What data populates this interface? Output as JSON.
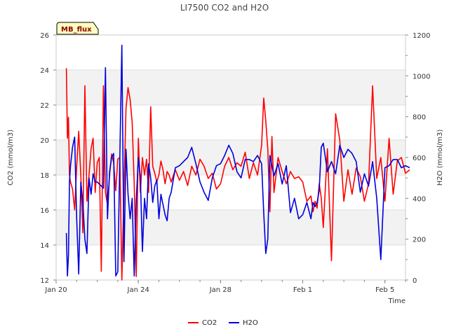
{
  "chart_data": {
    "type": "line",
    "title": "LI7500 CO2 and H2O",
    "xlabel": "Time",
    "ylabel_left": "CO2 (mmol/m3)",
    "ylabel_right": "H2O (mmol/m3)",
    "ylim_left": [
      12,
      26
    ],
    "ylim_right": [
      0,
      1200
    ],
    "xlim": [
      20.0,
      37.0
    ],
    "x_unit": "day of January",
    "y_ticks_left": [
      12,
      14,
      16,
      18,
      20,
      22,
      24,
      26
    ],
    "y_ticks_right": [
      0,
      200,
      400,
      600,
      800,
      1000,
      1200
    ],
    "x_ticks": [
      {
        "value": 20,
        "label": "Jan 20"
      },
      {
        "value": 24,
        "label": "Jan 24"
      },
      {
        "value": 28,
        "label": "Jan 28"
      },
      {
        "value": 32,
        "label": "Feb 1"
      },
      {
        "value": 36,
        "label": "Feb 5"
      }
    ],
    "badge": "MB_flux",
    "grid": true,
    "legend_position": "bottom-center",
    "series": [
      {
        "name": "CO2",
        "axis": "left",
        "color": "#ff0000",
        "x": [
          20.5,
          20.55,
          20.6,
          20.65,
          20.7,
          20.8,
          20.9,
          21.0,
          21.1,
          21.2,
          21.3,
          21.4,
          21.5,
          21.6,
          21.7,
          21.8,
          21.9,
          22.0,
          22.1,
          22.2,
          22.3,
          22.4,
          22.5,
          22.6,
          22.7,
          22.8,
          22.9,
          23.0,
          23.1,
          23.2,
          23.3,
          23.4,
          23.5,
          23.6,
          23.7,
          23.8,
          23.9,
          24.0,
          24.1,
          24.2,
          24.3,
          24.4,
          24.5,
          24.6,
          24.7,
          24.8,
          24.9,
          25.0,
          25.1,
          25.2,
          25.3,
          25.4,
          25.5,
          25.6,
          25.8,
          26.0,
          26.2,
          26.4,
          26.6,
          26.8,
          27.0,
          27.2,
          27.4,
          27.6,
          27.8,
          28.0,
          28.2,
          28.4,
          28.6,
          28.8,
          29.0,
          29.2,
          29.4,
          29.6,
          29.8,
          30.0,
          30.1,
          30.2,
          30.3,
          30.4,
          30.5,
          30.6,
          30.8,
          31.0,
          31.2,
          31.4,
          31.6,
          31.8,
          32.0,
          32.2,
          32.4,
          32.5,
          32.6,
          32.7,
          32.8,
          32.9,
          33.0,
          33.2,
          33.4,
          33.6,
          33.8,
          34.0,
          34.2,
          34.4,
          34.6,
          34.8,
          35.0,
          35.2,
          35.4,
          35.6,
          35.8,
          36.0,
          36.2,
          36.4,
          36.6,
          36.8,
          37.0,
          37.2
        ],
        "values": [
          24.1,
          20.1,
          21.3,
          18.0,
          17.6,
          17.2,
          16.0,
          18.5,
          20.5,
          18.0,
          14.7,
          23.1,
          16.5,
          18.0,
          19.5,
          20.1,
          17.0,
          18.7,
          19.0,
          12.5,
          23.1,
          17.0,
          16.3,
          18.0,
          19.2,
          18.7,
          17.1,
          18.9,
          19.0,
          12.0,
          17.1,
          21.8,
          23.0,
          22.3,
          21.0,
          17.5,
          12.2,
          20.1,
          17.0,
          19.0,
          18.0,
          18.9,
          17.0,
          21.9,
          18.5,
          18.1,
          17.6,
          18.0,
          18.8,
          18.3,
          17.5,
          18.2,
          18.0,
          17.6,
          18.3,
          17.7,
          18.2,
          17.4,
          18.5,
          18.0,
          18.9,
          18.5,
          17.8,
          18.1,
          17.2,
          17.5,
          18.5,
          19.0,
          18.3,
          18.7,
          18.5,
          19.3,
          17.8,
          18.7,
          18.0,
          19.7,
          22.4,
          21.1,
          19.5,
          15.9,
          20.2,
          17.0,
          19.0,
          18.2,
          17.5,
          18.2,
          17.8,
          17.9,
          17.6,
          16.5,
          16.8,
          15.9,
          16.5,
          16.1,
          17.5,
          16.7,
          15.0,
          19.5,
          13.1,
          21.5,
          20.0,
          16.5,
          18.3,
          16.9,
          18.4,
          17.9,
          16.5,
          17.5,
          23.1,
          17.8,
          19.0,
          16.5,
          20.1,
          16.9,
          18.8,
          19.0,
          18.1,
          18.3
        ]
      },
      {
        "name": "H2O",
        "axis": "right",
        "color": "#0000dd",
        "x": [
          20.5,
          20.55,
          20.6,
          20.65,
          20.7,
          20.8,
          20.9,
          21.0,
          21.1,
          21.2,
          21.3,
          21.4,
          21.5,
          21.6,
          21.7,
          21.8,
          21.9,
          22.0,
          22.1,
          22.2,
          22.3,
          22.4,
          22.5,
          22.6,
          22.7,
          22.8,
          22.9,
          23.0,
          23.1,
          23.2,
          23.3,
          23.4,
          23.5,
          23.6,
          23.7,
          23.8,
          23.9,
          24.0,
          24.1,
          24.2,
          24.3,
          24.4,
          24.5,
          24.6,
          24.7,
          24.8,
          24.9,
          25.0,
          25.1,
          25.2,
          25.3,
          25.4,
          25.5,
          25.6,
          25.8,
          26.0,
          26.2,
          26.4,
          26.6,
          26.8,
          27.0,
          27.2,
          27.4,
          27.6,
          27.8,
          28.0,
          28.2,
          28.4,
          28.6,
          28.8,
          29.0,
          29.2,
          29.4,
          29.6,
          29.8,
          30.0,
          30.1,
          30.2,
          30.3,
          30.4,
          30.5,
          30.6,
          30.8,
          31.0,
          31.2,
          31.4,
          31.6,
          31.8,
          32.0,
          32.2,
          32.4,
          32.5,
          32.6,
          32.7,
          32.8,
          32.9,
          33.0,
          33.2,
          33.4,
          33.6,
          33.8,
          34.0,
          34.2,
          34.4,
          34.6,
          34.8,
          35.0,
          35.2,
          35.4,
          35.6,
          35.8,
          36.0,
          36.2,
          36.4,
          36.6,
          36.8,
          37.0,
          37.2
        ],
        "values": [
          230,
          20,
          120,
          480,
          560,
          650,
          700,
          300,
          30,
          480,
          380,
          200,
          130,
          500,
          420,
          520,
          480,
          480,
          470,
          460,
          450,
          1040,
          300,
          530,
          600,
          620,
          20,
          40,
          600,
          1150,
          90,
          640,
          420,
          300,
          400,
          20,
          390,
          600,
          500,
          140,
          400,
          300,
          570,
          500,
          380,
          460,
          490,
          300,
          420,
          370,
          320,
          290,
          400,
          430,
          550,
          560,
          580,
          600,
          650,
          570,
          480,
          430,
          390,
          500,
          560,
          570,
          610,
          660,
          620,
          530,
          500,
          590,
          590,
          580,
          610,
          570,
          330,
          130,
          200,
          610,
          560,
          510,
          570,
          470,
          560,
          330,
          400,
          300,
          320,
          380,
          300,
          380,
          360,
          380,
          440,
          650,
          670,
          530,
          580,
          520,
          660,
          600,
          640,
          620,
          580,
          430,
          520,
          460,
          580,
          400,
          100,
          550,
          560,
          590,
          590,
          550,
          560,
          550
        ]
      }
    ]
  }
}
